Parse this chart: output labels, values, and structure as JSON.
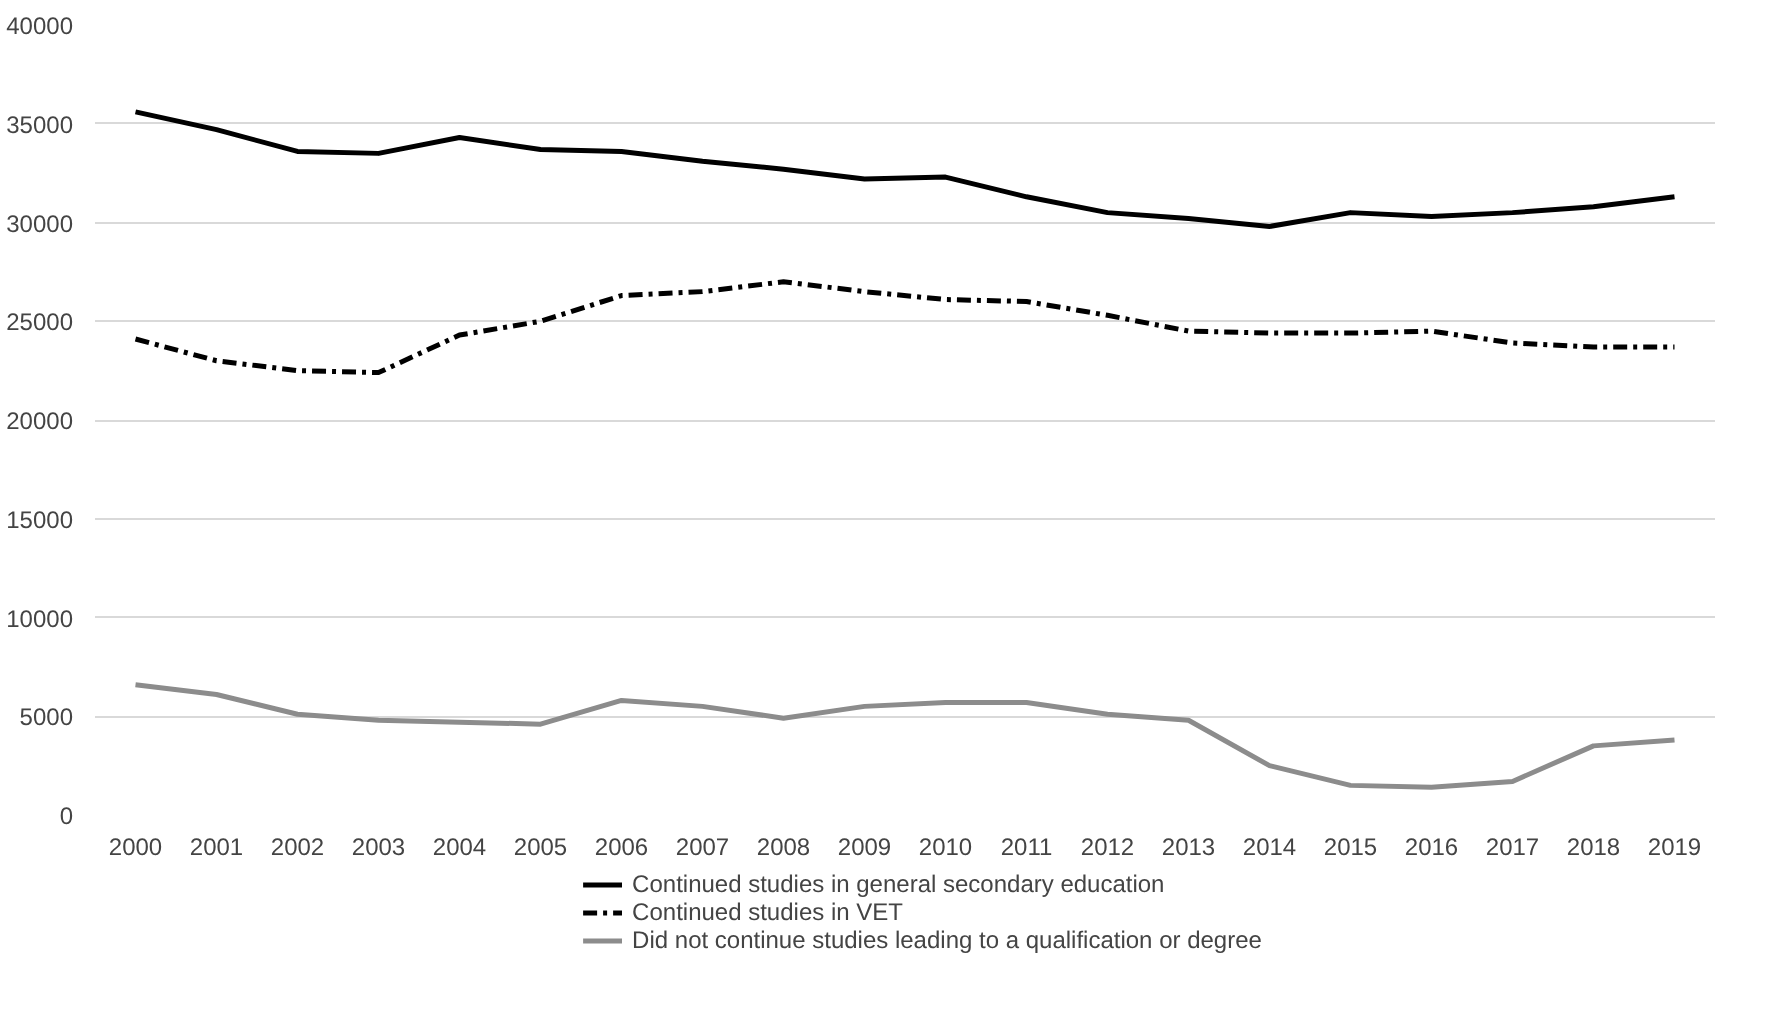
{
  "chart_data": {
    "type": "line",
    "categories": [
      "2000",
      "2001",
      "2002",
      "2003",
      "2004",
      "2005",
      "2006",
      "2007",
      "2008",
      "2009",
      "2010",
      "2011",
      "2012",
      "2013",
      "2014",
      "2015",
      "2016",
      "2017",
      "2018",
      "2019"
    ],
    "series": [
      {
        "name": "Continued studies in general secondary education",
        "color": "#000000",
        "line_style": "solid",
        "values": [
          35600,
          34700,
          33600,
          33500,
          34300,
          33700,
          33600,
          33100,
          32700,
          32200,
          32300,
          31300,
          30500,
          30200,
          29800,
          30500,
          30300,
          30500,
          30800,
          31300
        ]
      },
      {
        "name": "Continued studies in VET",
        "color": "#000000",
        "line_style": "dashed",
        "values": [
          24100,
          23000,
          22500,
          22400,
          24300,
          25000,
          26300,
          26500,
          27000,
          26500,
          26100,
          26000,
          25300,
          24500,
          24400,
          24400,
          24500,
          23900,
          23700,
          23700
        ]
      },
      {
        "name": "Did not continue studies leading to a qualification or degree",
        "color": "#8c8c8c",
        "line_style": "solid",
        "values": [
          6600,
          6100,
          5100,
          4800,
          4700,
          4600,
          5800,
          5500,
          4900,
          5500,
          5700,
          5700,
          5100,
          4800,
          2500,
          1500,
          1400,
          1700,
          3500,
          3800
        ]
      }
    ],
    "ylim": [
      0,
      40000
    ],
    "yticks": [
      0,
      5000,
      10000,
      15000,
      20000,
      25000,
      30000,
      35000,
      40000
    ],
    "grid": "y",
    "legend": "bottom",
    "marker": "none"
  }
}
